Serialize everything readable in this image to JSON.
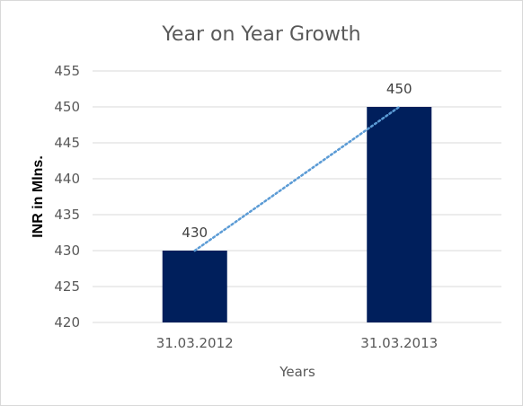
{
  "chart_data": {
    "type": "bar",
    "title": "Year on Year Growth",
    "xlabel": "Years",
    "ylabel": "INR in Mlns.",
    "categories": [
      "31.03.2012",
      "31.03.2013"
    ],
    "values": [
      430,
      450
    ],
    "data_labels": [
      "430",
      "450"
    ],
    "ylim": [
      420,
      455
    ],
    "yticks": [
      "420",
      "425",
      "430",
      "435",
      "440",
      "445",
      "450",
      "455"
    ],
    "ytick_values": [
      420,
      425,
      430,
      435,
      440,
      445,
      450,
      455
    ],
    "grid": true,
    "legend": "none",
    "trendline": "dotted-linear",
    "colors": {
      "bar": "#001F5C",
      "trendline": "#5B9BD5",
      "grid": "#D9D9D9",
      "text": "#595959"
    }
  }
}
